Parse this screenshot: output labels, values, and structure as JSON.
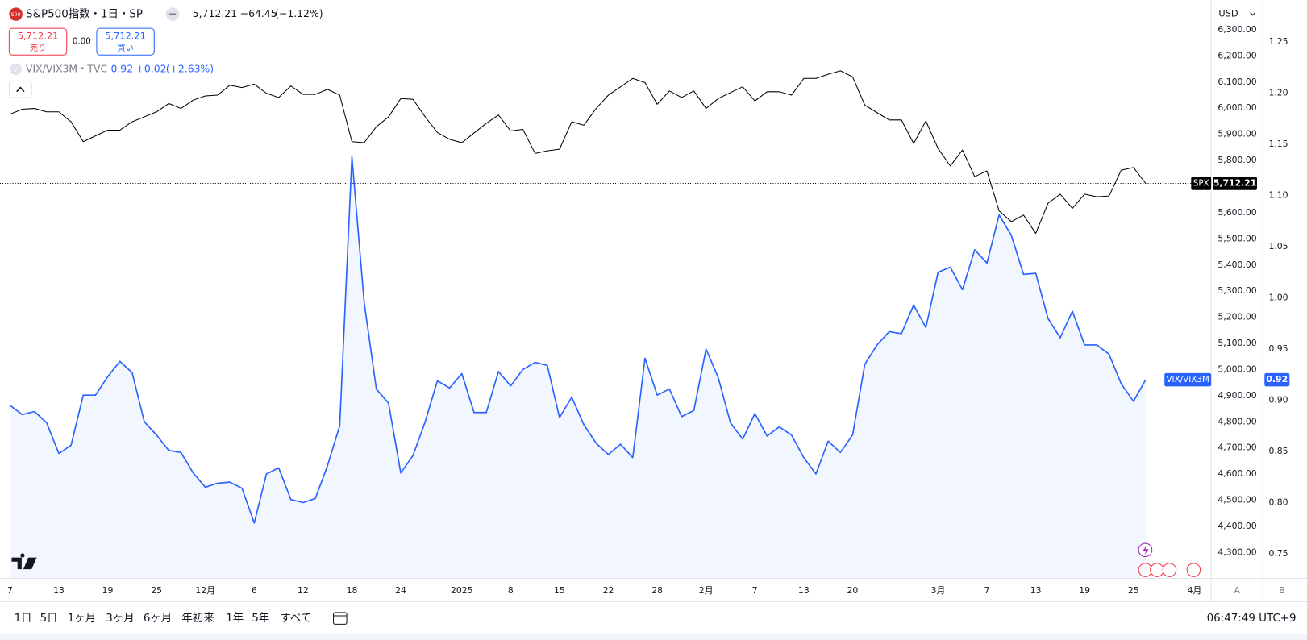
{
  "header": {
    "symbol_icon": "500",
    "title": "S&P500指数・1日・SP",
    "price": "5,712.21",
    "change": "−64.45",
    "change_pct": "(−1.12%)",
    "sell_price": "5,712.21",
    "sell_label": "売り",
    "spread": "0.00",
    "buy_price": "5,712.21",
    "buy_label": "買い",
    "study_icon": "V",
    "study_title": "VIX/VIX3M・TVC",
    "study_value": "0.92",
    "study_change": "+0.02",
    "study_change_pct": "(+2.63%)",
    "currency": "USD"
  },
  "chart_data": {
    "type": "line",
    "categories": [
      "7",
      null,
      null,
      null,
      "13",
      null,
      null,
      null,
      "19",
      null,
      null,
      null,
      "25",
      null,
      null,
      null,
      "12月",
      null,
      null,
      null,
      "6",
      null,
      null,
      null,
      "12",
      null,
      null,
      null,
      "18",
      null,
      null,
      null,
      "24",
      null,
      null,
      null,
      null,
      "2025",
      null,
      null,
      null,
      "8",
      null,
      null,
      null,
      "15",
      null,
      null,
      null,
      "22",
      null,
      null,
      null,
      "28",
      null,
      null,
      null,
      "2月",
      null,
      null,
      null,
      "7",
      null,
      null,
      null,
      "13",
      null,
      null,
      null,
      "20",
      null,
      null,
      null,
      null,
      null,
      null,
      "3月",
      null,
      null,
      null,
      "7",
      null,
      null,
      null,
      "13",
      null,
      null,
      null,
      "19",
      null,
      null,
      null,
      "25",
      null,
      null,
      null,
      null,
      "4月"
    ],
    "series": [
      {
        "name": "SPX",
        "color": "#000000",
        "last_value_label": "5,712.21",
        "price_line": true,
        "values": [
          5977,
          5996,
          5999,
          5986,
          5986,
          5948,
          5872,
          5894,
          5916,
          5916,
          5948,
          5967,
          5986,
          6018,
          5999,
          6031,
          6047,
          6050,
          6088,
          6079,
          6092,
          6057,
          6041,
          6085,
          6053,
          6053,
          6072,
          6050,
          5872,
          5868,
          5929,
          5967,
          6037,
          6034,
          5967,
          5907,
          5881,
          5868,
          5905,
          5942,
          5974,
          5913,
          5919,
          5827,
          5837,
          5843,
          5948,
          5935,
          5999,
          6050,
          6082,
          6114,
          6098,
          6015,
          6066,
          6041,
          6066,
          5999,
          6037,
          6060,
          6082,
          6028,
          6063,
          6063,
          6050,
          6114,
          6114,
          6130,
          6143,
          6120,
          6012,
          5983,
          5955,
          5955,
          5865,
          5951,
          5846,
          5779,
          5840,
          5738,
          5760,
          5607,
          5566,
          5591,
          5521,
          5636,
          5671,
          5617,
          5671,
          5661,
          5664,
          5763,
          5773,
          5712.21,
          null,
          null,
          null,
          null
        ]
      },
      {
        "name": "VIX/VIX3M",
        "color": "#2962ff",
        "axis": "y2",
        "area": true,
        "last_value_label": "0.92",
        "values": [
          0.895,
          0.886,
          0.889,
          0.878,
          0.848,
          0.856,
          0.905,
          0.905,
          0.923,
          0.938,
          0.927,
          0.879,
          0.866,
          0.851,
          0.849,
          0.829,
          0.815,
          0.819,
          0.82,
          0.814,
          0.78,
          0.828,
          0.834,
          0.803,
          0.8,
          0.804,
          0.836,
          0.875,
          1.138,
          0.996,
          0.911,
          0.897,
          0.829,
          0.846,
          0.879,
          0.919,
          0.912,
          0.926,
          0.888,
          0.888,
          0.928,
          0.914,
          0.93,
          0.937,
          0.934,
          0.883,
          0.903,
          0.876,
          0.858,
          0.847,
          0.857,
          0.844,
          0.941,
          0.905,
          0.911,
          0.884,
          0.89,
          0.95,
          0.922,
          0.878,
          0.862,
          0.887,
          0.865,
          0.874,
          0.866,
          0.844,
          0.828,
          0.86,
          0.849,
          0.866,
          0.935,
          0.954,
          0.967,
          0.965,
          0.993,
          0.971,
          1.025,
          1.03,
          1.008,
          1.047,
          1.034,
          1.081,
          1.061,
          1.023,
          1.024,
          0.98,
          0.961,
          0.987,
          0.954,
          0.954,
          0.945,
          0.916,
          0.899,
          0.92,
          null,
          null,
          null,
          null
        ]
      }
    ],
    "ylim": [
      4201,
      6414
    ],
    "yticks": [
      {
        "value": 4300,
        "label": "4,300.00"
      },
      {
        "value": 4400,
        "label": "4,400.00"
      },
      {
        "value": 4500,
        "label": "4,500.00"
      },
      {
        "value": 4600,
        "label": "4,600.00"
      },
      {
        "value": 4700,
        "label": "4,700.00"
      },
      {
        "value": 4800,
        "label": "4,800.00"
      },
      {
        "value": 4900,
        "label": "4,900.00"
      },
      {
        "value": 5000,
        "label": "5,000.00"
      },
      {
        "value": 5100,
        "label": "5,100.00"
      },
      {
        "value": 5200,
        "label": "5,200.00"
      },
      {
        "value": 5300,
        "label": "5,300.00"
      },
      {
        "value": 5400,
        "label": "5,400.00"
      },
      {
        "value": 5500,
        "label": "5,500.00"
      },
      {
        "value": 5600,
        "label": "5,600.00"
      },
      {
        "value": 5700,
        "label": "5,700.00"
      },
      {
        "value": 5800,
        "label": "5,800.00"
      },
      {
        "value": 5900,
        "label": "5,900.00"
      },
      {
        "value": 6000,
        "label": "6,000.00"
      },
      {
        "value": 6100,
        "label": "6,100.00"
      },
      {
        "value": 6200,
        "label": "6,200.00"
      },
      {
        "value": 6300,
        "label": "6,300.00"
      }
    ],
    "y2lim": [
      0.726,
      1.291
    ],
    "y2ticks": [
      0.75,
      {
        "value": 0.8,
        "label": "0.80"
      },
      0.85,
      {
        "value": 0.9,
        "label": "0.90"
      },
      0.95,
      {
        "value": 1,
        "label": "1.00"
      },
      1.05,
      {
        "value": 1.1,
        "label": "1.10"
      },
      1.15,
      {
        "value": 1.2,
        "label": "1.20"
      },
      1.25
    ],
    "grid": false,
    "axis_labels": [
      "A",
      "B"
    ]
  },
  "toolbar": {
    "ranges": [
      "1日",
      "5日",
      "1ヶ月",
      "3ヶ月",
      "6ヶ月",
      "年初来",
      "1年",
      "5年",
      "すべて"
    ],
    "clock": "06:47:49 UTC+9"
  }
}
